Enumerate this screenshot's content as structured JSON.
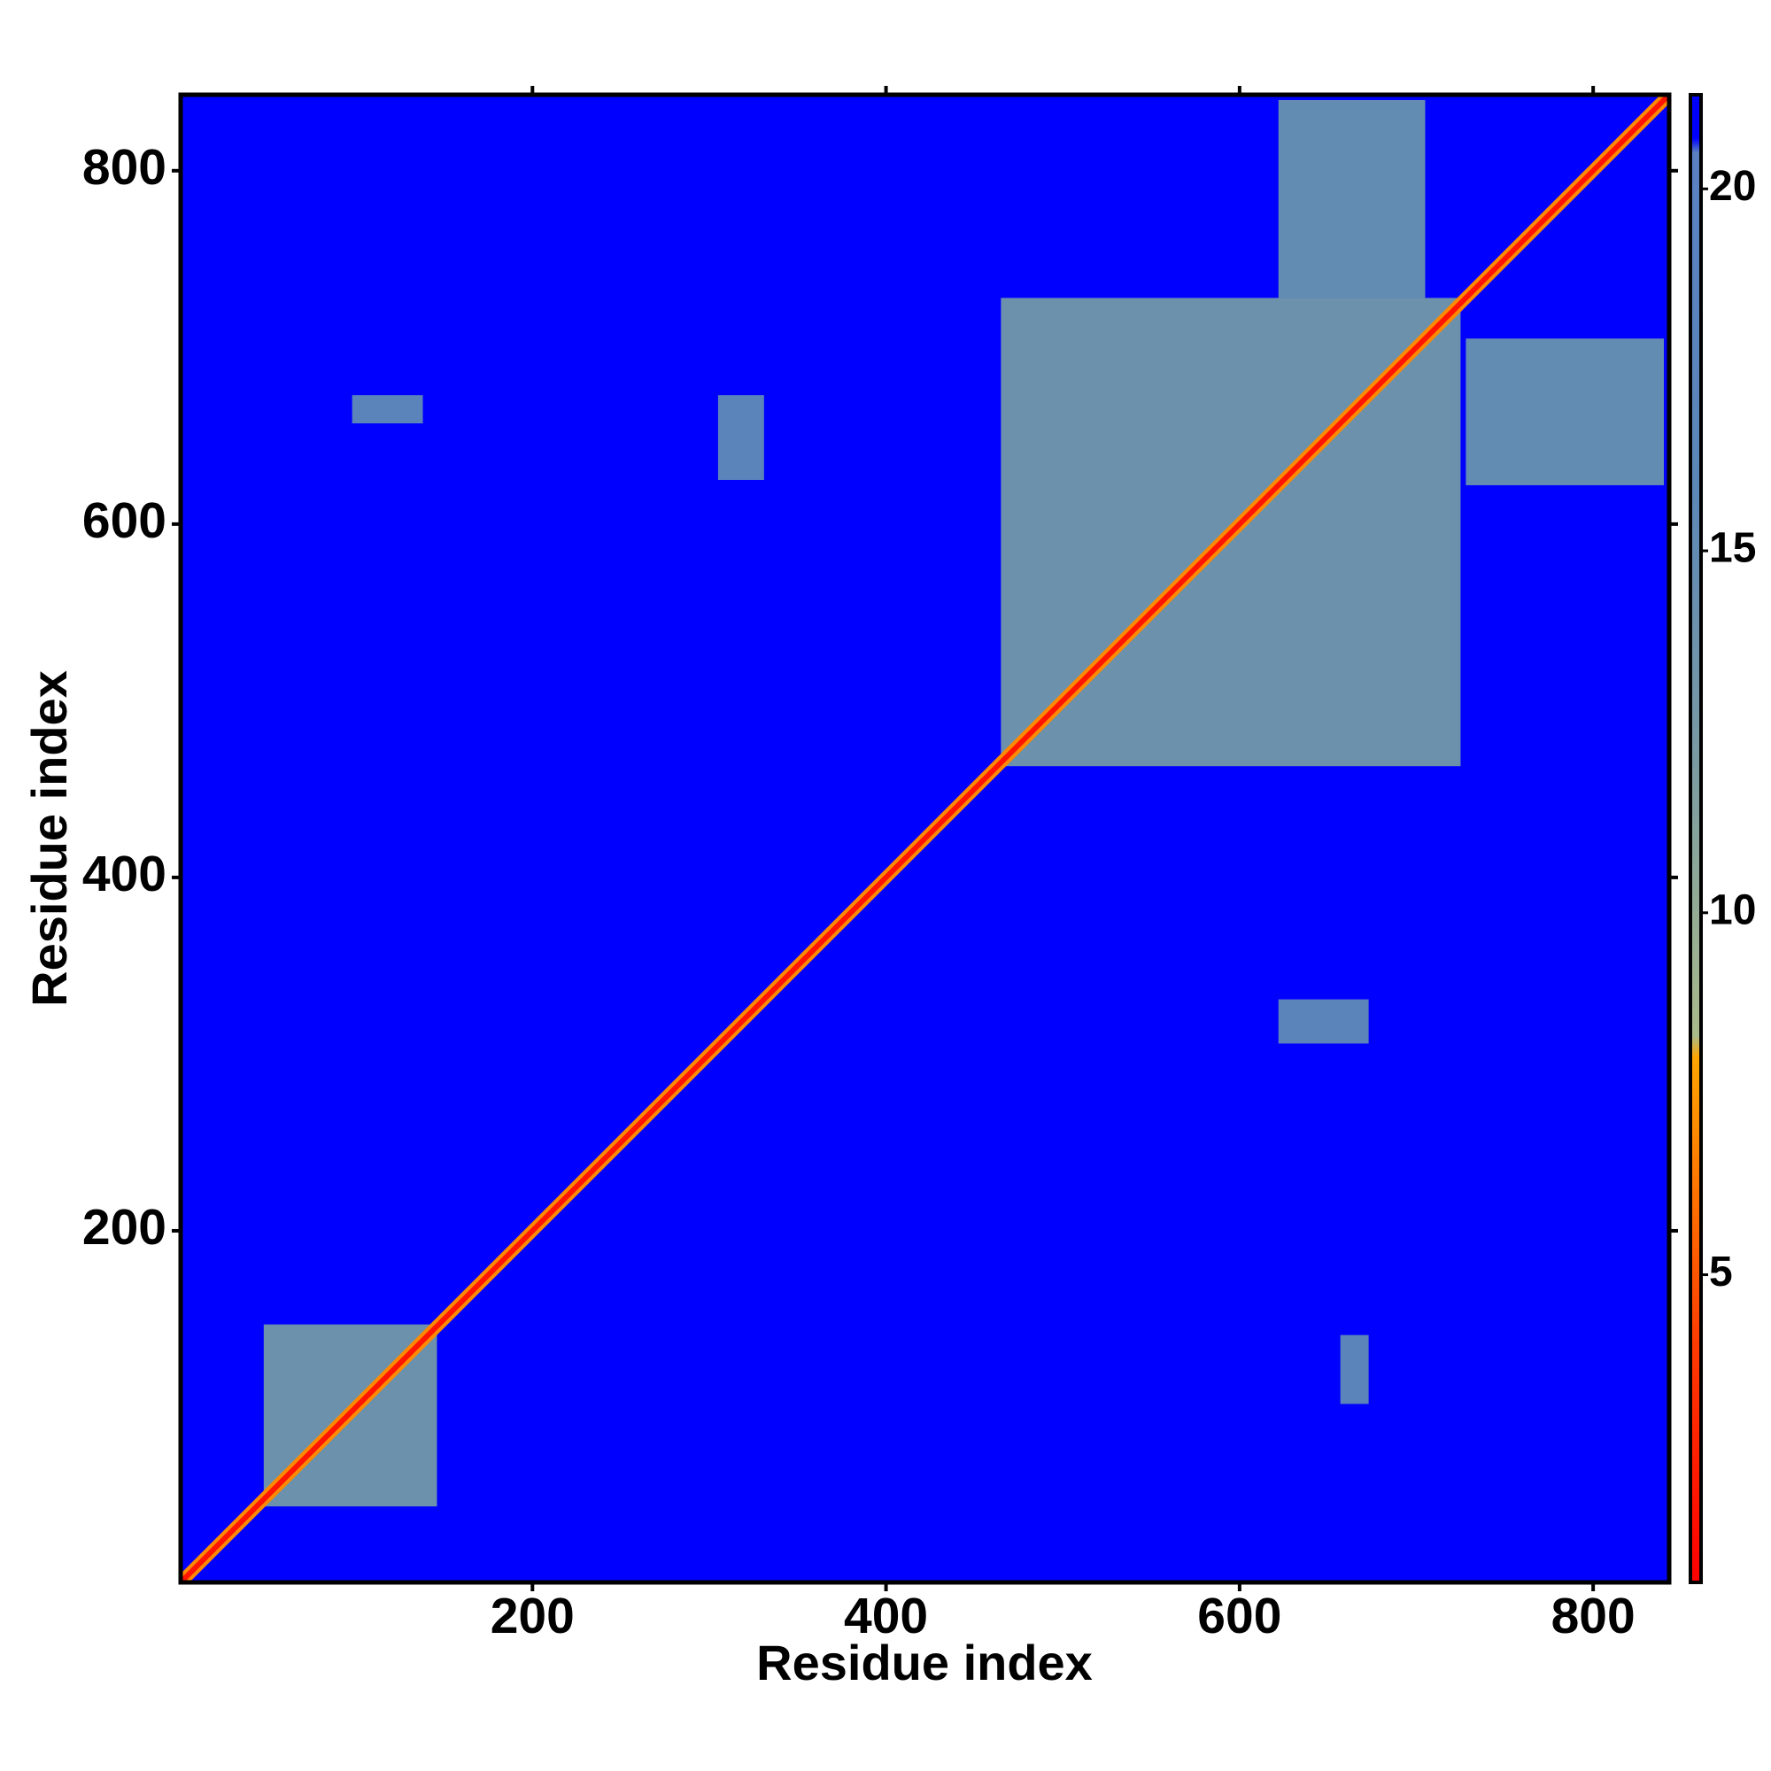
{
  "chart_data": {
    "type": "heatmap",
    "x_label": "Residue index",
    "y_label": "Residue index",
    "xlim": [
      1,
      843
    ],
    "ylim": [
      1,
      843
    ],
    "xticks": [
      200,
      400,
      600,
      800
    ],
    "yticks": [
      200,
      400,
      600,
      800
    ],
    "zlim": [
      0.75,
      21.3
    ],
    "zticks": [
      5,
      10,
      15,
      20
    ],
    "colormap": [
      {
        "value": 0.75,
        "color": "#ff0000"
      },
      {
        "value": 4,
        "color": "#ff3a00"
      },
      {
        "value": 8,
        "color": "#ffa500"
      },
      {
        "value": 8.3,
        "color": "#a9ba8a"
      },
      {
        "value": 12,
        "color": "#7b9ba2"
      },
      {
        "value": 16,
        "color": "#5b87b8"
      },
      {
        "value": 20.5,
        "color": "#5a80c2"
      },
      {
        "value": 20.7,
        "color": "#0000ff"
      },
      {
        "value": 21.3,
        "color": "#0000ff"
      }
    ],
    "background_value": 21,
    "cells": [
      {
        "x": [
          48,
          146
        ],
        "y": [
          44,
          147
        ],
        "value": 14
      },
      {
        "x": [
          465,
          725
        ],
        "y": [
          463,
          728
        ],
        "value": 14
      },
      {
        "x": [
          622,
          705
        ],
        "y": [
          728,
          840
        ],
        "value": 15
      },
      {
        "x": [
          728,
          840
        ],
        "y": [
          622,
          705
        ],
        "value": 15
      },
      {
        "x": [
          98,
          138
        ],
        "y": [
          657,
          673
        ],
        "value": 17
      },
      {
        "x": [
          305,
          331
        ],
        "y": [
          625,
          673
        ],
        "value": 17
      },
      {
        "x": [
          622,
          673
        ],
        "y": [
          306,
          331
        ],
        "value": 17
      },
      {
        "x": [
          657,
          673
        ],
        "y": [
          102,
          141
        ],
        "value": 17
      }
    ],
    "diagonal": {
      "range": [
        1,
        843
      ],
      "value": 2,
      "edge_value": 7
    }
  }
}
